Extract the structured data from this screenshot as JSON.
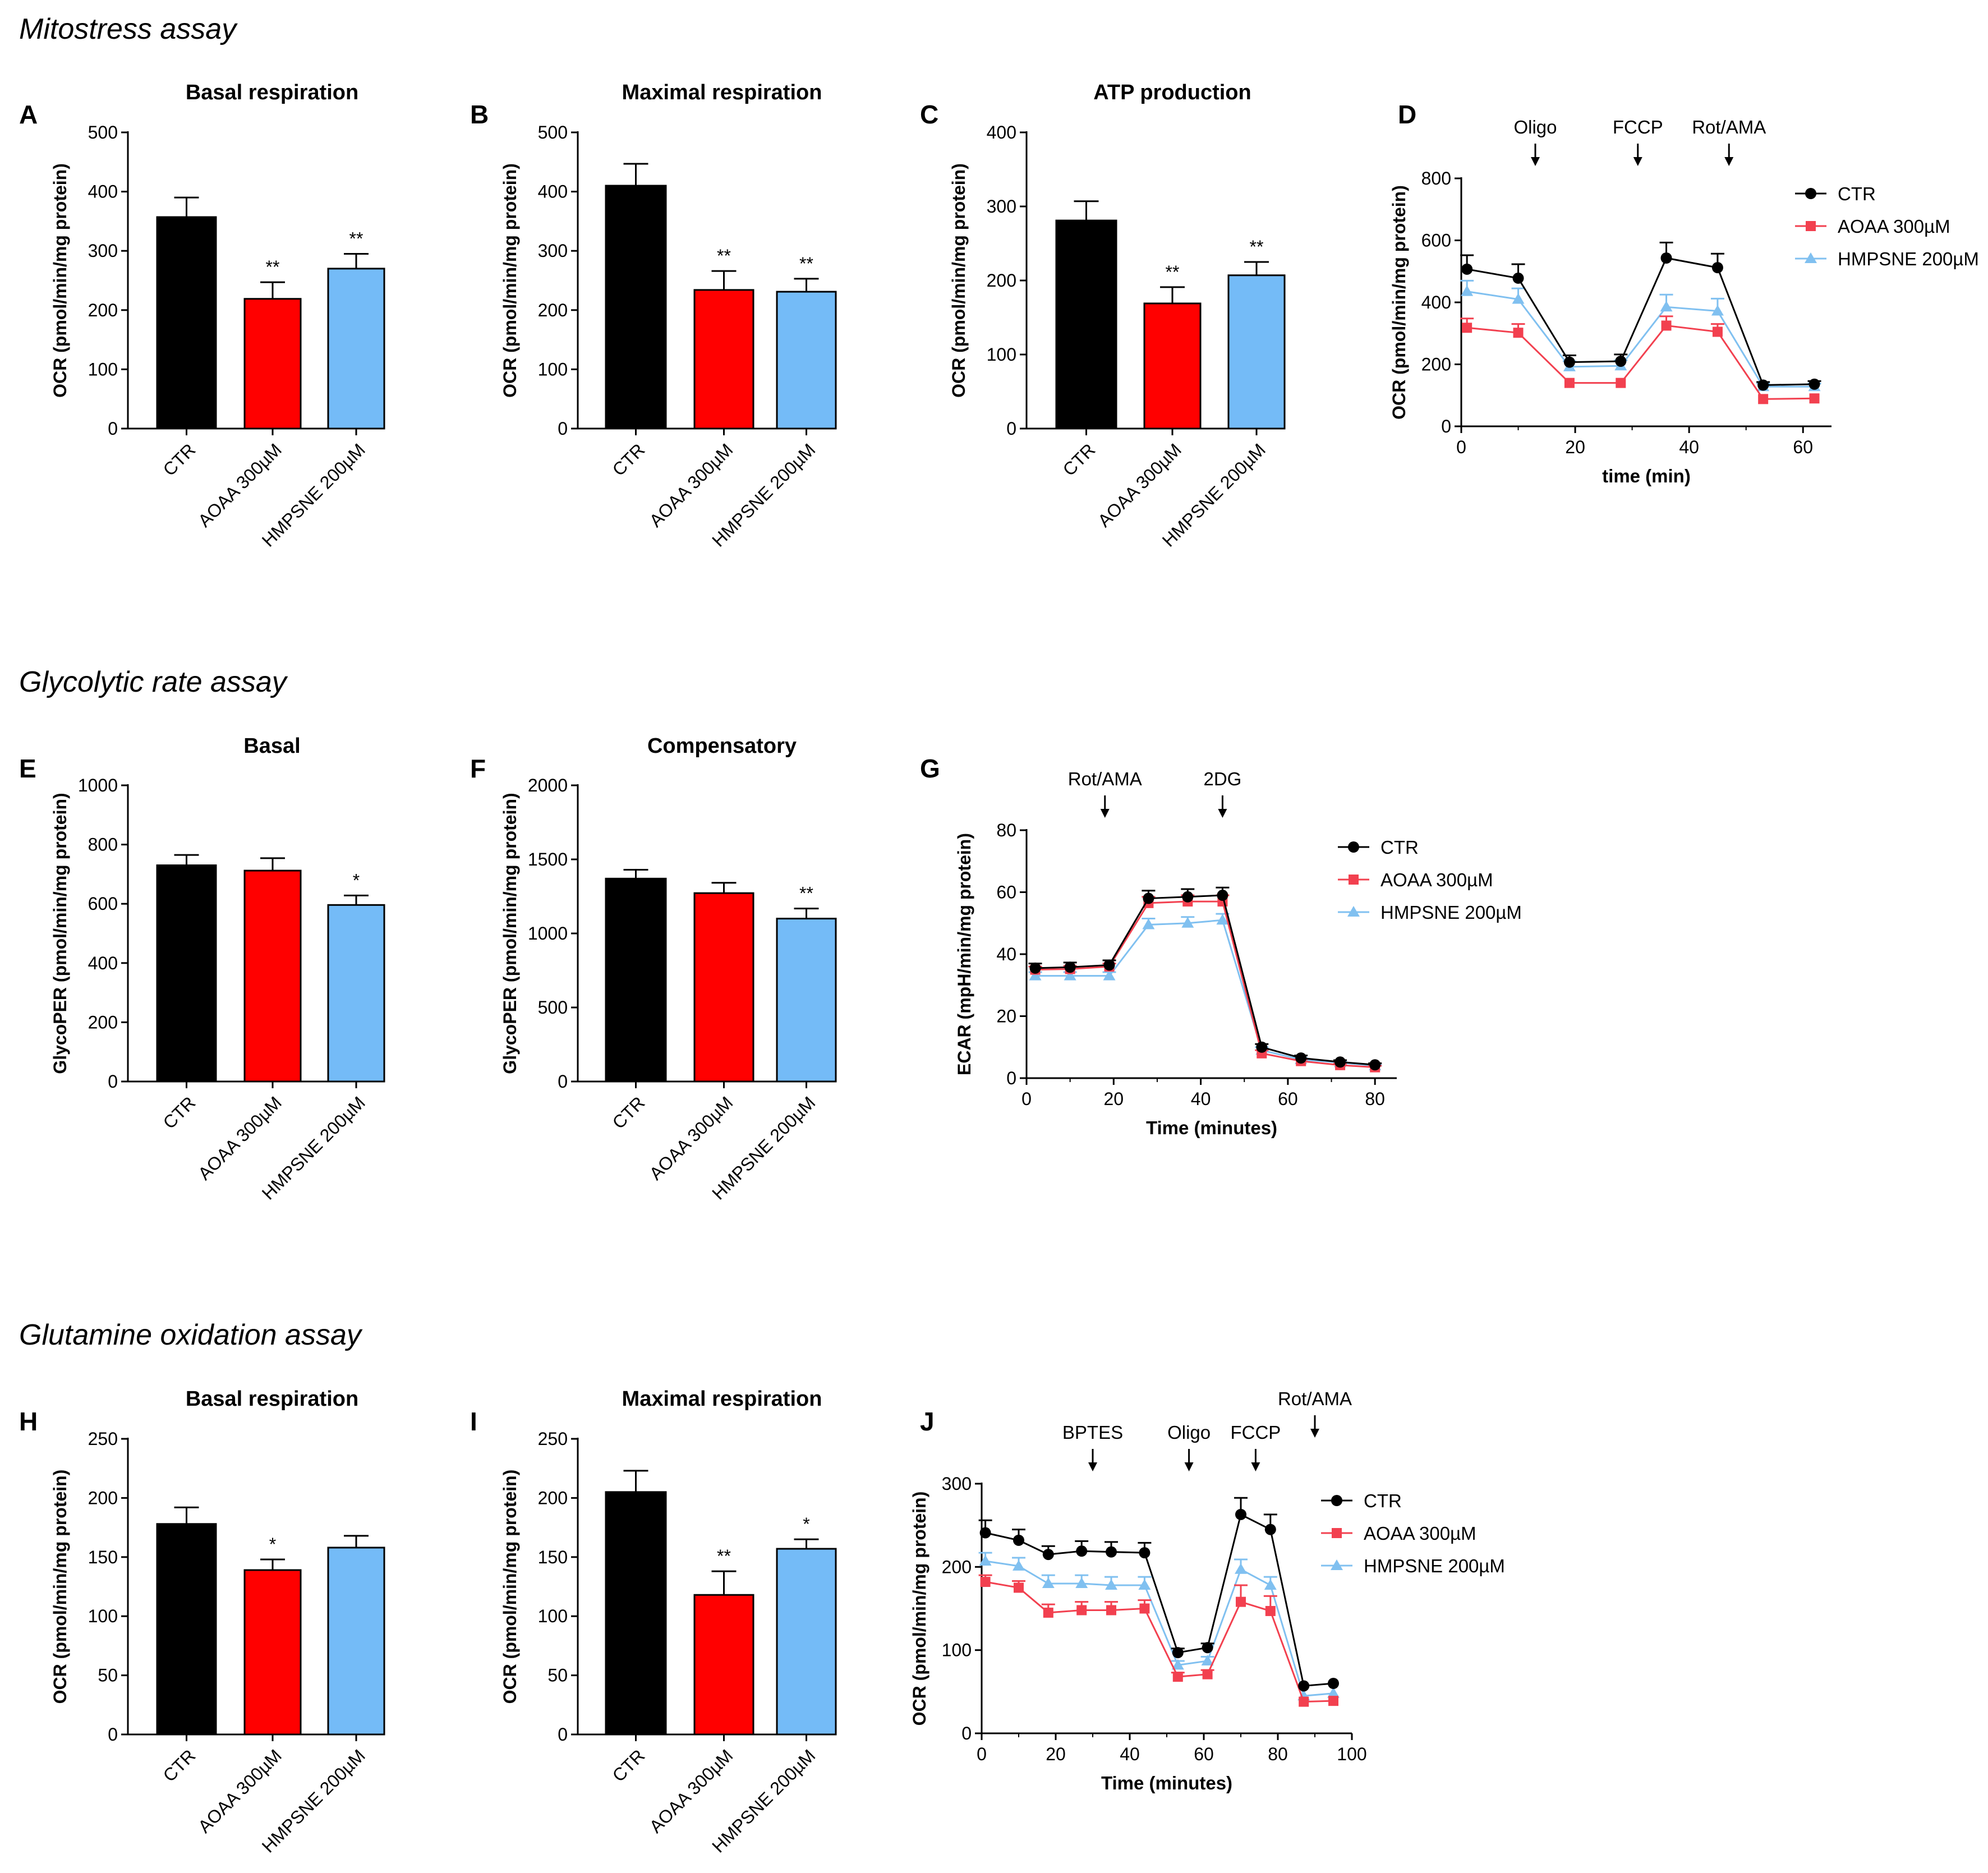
{
  "sections": [
    {
      "label": "Mitostress assay"
    },
    {
      "label": "Glycolytic rate assay"
    },
    {
      "label": "Glutamine oxidation assay"
    }
  ],
  "colors": {
    "ctr": "#000000",
    "aoaa": "#ff0000",
    "hmpsne": "#74bbf7",
    "aoaa_line": "#f2404f",
    "hmpsne_line": "#80c0f0"
  },
  "chart_data": [
    {
      "id": "A",
      "panel_label": "A",
      "type": "bar",
      "title": "Basal respiration",
      "ylabel": "OCR (pmol/min/mg protein)",
      "ylim": [
        0,
        500
      ],
      "yticks": [
        0,
        100,
        200,
        300,
        400,
        500
      ],
      "categories": [
        "CTR",
        "AOAA 300µM",
        "HMPSNE 200µM"
      ],
      "values": [
        357,
        219,
        270
      ],
      "errors": [
        33,
        28,
        25
      ],
      "significance": [
        "",
        "**",
        "**"
      ]
    },
    {
      "id": "B",
      "panel_label": "B",
      "type": "bar",
      "title": "Maximal respiration",
      "ylabel": "OCR (pmol/min/mg protein)",
      "ylim": [
        0,
        500
      ],
      "yticks": [
        0,
        100,
        200,
        300,
        400,
        500
      ],
      "categories": [
        "CTR",
        "AOAA 300µM",
        "HMPSNE 200µM"
      ],
      "values": [
        410,
        234,
        231
      ],
      "errors": [
        37,
        32,
        22
      ],
      "significance": [
        "",
        "**",
        "**"
      ]
    },
    {
      "id": "C",
      "panel_label": "C",
      "type": "bar",
      "title": "ATP production",
      "ylabel": "OCR (pmol/min/mg protein)",
      "ylim": [
        0,
        400
      ],
      "yticks": [
        0,
        100,
        200,
        300,
        400
      ],
      "categories": [
        "CTR",
        "AOAA 300µM",
        "HMPSNE 200µM"
      ],
      "values": [
        281,
        169,
        207
      ],
      "errors": [
        26,
        22,
        18
      ],
      "significance": [
        "",
        "**",
        "**"
      ]
    },
    {
      "id": "D",
      "panel_label": "D",
      "type": "line",
      "title": "",
      "xlabel": "time (min)",
      "ylabel": "OCR (pmol/min/mg protein)",
      "xlim": [
        0,
        65
      ],
      "ylim": [
        0,
        800
      ],
      "xticks": [
        0,
        20,
        40,
        60
      ],
      "yticks": [
        0,
        200,
        400,
        600,
        800
      ],
      "x": [
        1,
        10,
        19,
        28,
        36,
        45,
        53,
        62
      ],
      "series": [
        {
          "name": "CTR",
          "values": [
            507,
            478,
            207,
            210,
            543,
            512,
            133,
            136
          ],
          "errors": [
            45,
            45,
            22,
            22,
            50,
            45,
            10,
            10
          ]
        },
        {
          "name": "AOAA 300µM",
          "values": [
            318,
            302,
            140,
            140,
            325,
            305,
            88,
            90
          ],
          "errors": [
            30,
            28,
            0,
            0,
            30,
            25,
            0,
            0
          ]
        },
        {
          "name": "HMPSNE 200µM",
          "values": [
            435,
            410,
            192,
            195,
            385,
            372,
            128,
            128
          ],
          "errors": [
            35,
            35,
            18,
            18,
            40,
            40,
            10,
            10
          ]
        }
      ],
      "injections": [
        {
          "label": "Oligo",
          "x": 13
        },
        {
          "label": "FCCP",
          "x": 31
        },
        {
          "label": "Rot/AMA",
          "x": 47
        }
      ]
    },
    {
      "id": "E",
      "panel_label": "E",
      "type": "bar",
      "title": "Basal",
      "ylabel": "GlycoPER (pmol/min/mg protein)",
      "ylim": [
        0,
        1000
      ],
      "yticks": [
        0,
        200,
        400,
        600,
        800,
        1000
      ],
      "categories": [
        "CTR",
        "AOAA 300µM",
        "HMPSNE 200µM"
      ],
      "values": [
        730,
        712,
        596
      ],
      "errors": [
        35,
        42,
        32
      ],
      "significance": [
        "",
        "",
        "*"
      ]
    },
    {
      "id": "F",
      "panel_label": "F",
      "type": "bar",
      "title": "Compensatory",
      "ylabel": "GlycoPER (pmol/min/mg protein)",
      "ylim": [
        0,
        2000
      ],
      "yticks": [
        0,
        500,
        1000,
        1500,
        2000
      ],
      "categories": [
        "CTR",
        "AOAA 300µM",
        "HMPSNE 200µM"
      ],
      "values": [
        1370,
        1272,
        1100
      ],
      "errors": [
        60,
        70,
        68
      ],
      "significance": [
        "",
        "",
        "**"
      ]
    },
    {
      "id": "G",
      "panel_label": "G",
      "type": "line",
      "title": "",
      "xlabel": "Time (minutes)",
      "ylabel": "ECAR (mpH/min/mg protein)",
      "xlim": [
        0,
        85
      ],
      "ylim": [
        0,
        80
      ],
      "xticks": [
        0,
        20,
        40,
        60,
        80
      ],
      "yticks": [
        0,
        20,
        40,
        60,
        80
      ],
      "x": [
        2,
        10,
        19,
        28,
        37,
        45,
        54,
        63,
        72,
        80
      ],
      "series": [
        {
          "name": "CTR",
          "values": [
            35.5,
            35.8,
            36.5,
            58,
            58.5,
            59,
            10,
            6.5,
            5.2,
            4.3
          ],
          "errors": [
            1.5,
            1.5,
            1.5,
            2.5,
            2.5,
            2.5,
            1,
            0.8,
            0.6,
            0.5
          ]
        },
        {
          "name": "AOAA 300µM",
          "values": [
            35,
            35.2,
            36,
            56.5,
            57,
            57,
            8,
            5.5,
            4.2,
            3.5
          ],
          "errors": [
            1,
            1,
            1,
            2,
            2,
            2,
            1,
            0.5,
            0.5,
            0.5
          ]
        },
        {
          "name": "HMPSNE 200µM",
          "values": [
            33,
            33,
            33,
            49.5,
            50,
            51,
            9,
            6,
            5,
            4
          ],
          "errors": [
            1.2,
            1.2,
            1.2,
            2,
            2,
            2,
            1,
            0.5,
            0.5,
            0.5
          ]
        }
      ],
      "injections": [
        {
          "label": "Rot/AMA",
          "x": 18
        },
        {
          "label": "2DG",
          "x": 45
        }
      ]
    },
    {
      "id": "H",
      "panel_label": "H",
      "type": "bar",
      "title": "Basal respiration",
      "ylabel": "OCR (pmol/min/mg protein)",
      "ylim": [
        0,
        250
      ],
      "yticks": [
        0,
        50,
        100,
        150,
        200,
        250
      ],
      "categories": [
        "CTR",
        "AOAA 300µM",
        "HMPSNE 200µM"
      ],
      "values": [
        178,
        139,
        158
      ],
      "errors": [
        14,
        9,
        10
      ],
      "significance": [
        "",
        "*",
        ""
      ]
    },
    {
      "id": "I",
      "panel_label": "I",
      "type": "bar",
      "title": "Maximal respiration",
      "ylabel": "OCR (pmol/min/mg protein)",
      "ylim": [
        0,
        250
      ],
      "yticks": [
        0,
        50,
        100,
        150,
        200,
        250
      ],
      "categories": [
        "CTR",
        "AOAA 300µM",
        "HMPSNE 200µM"
      ],
      "values": [
        205,
        118,
        157
      ],
      "errors": [
        18,
        20,
        8
      ],
      "significance": [
        "",
        "**",
        "*"
      ]
    },
    {
      "id": "J",
      "panel_label": "J",
      "type": "line",
      "title": "",
      "xlabel": "Time (minutes)",
      "ylabel": "OCR (pmol/min/mg protein)",
      "xlim": [
        0,
        100
      ],
      "ylim": [
        0,
        300
      ],
      "xticks": [
        0,
        20,
        40,
        60,
        80,
        100
      ],
      "yticks": [
        0,
        100,
        200,
        300
      ],
      "x": [
        1,
        10,
        18,
        27,
        35,
        44,
        53,
        61,
        70,
        78,
        87,
        95
      ],
      "series": [
        {
          "name": "CTR",
          "values": [
            241,
            232,
            215,
            219,
            218,
            217,
            97,
            103,
            263,
            245,
            57,
            60
          ],
          "errors": [
            15,
            13,
            10,
            12,
            12,
            12,
            5,
            5,
            20,
            18,
            0,
            0
          ]
        },
        {
          "name": "AOAA 300µM",
          "values": [
            182,
            175,
            145,
            148,
            148,
            150,
            68,
            71,
            158,
            147,
            38,
            39
          ],
          "errors": [
            8,
            8,
            10,
            10,
            10,
            10,
            5,
            5,
            20,
            18,
            0,
            0
          ]
        },
        {
          "name": "HMPSNE 200µM",
          "values": [
            207,
            201,
            180,
            180,
            178,
            178,
            82,
            87,
            197,
            178,
            45,
            48
          ],
          "errors": [
            10,
            10,
            10,
            10,
            10,
            10,
            5,
            5,
            12,
            10,
            0,
            0
          ]
        }
      ],
      "injections": [
        {
          "label": "BPTES",
          "x": 30
        },
        {
          "label": "Oligo",
          "x": 56
        },
        {
          "label": "FCCP",
          "x": 74
        },
        {
          "label": "Rot/AMA",
          "x": 90
        }
      ]
    }
  ]
}
